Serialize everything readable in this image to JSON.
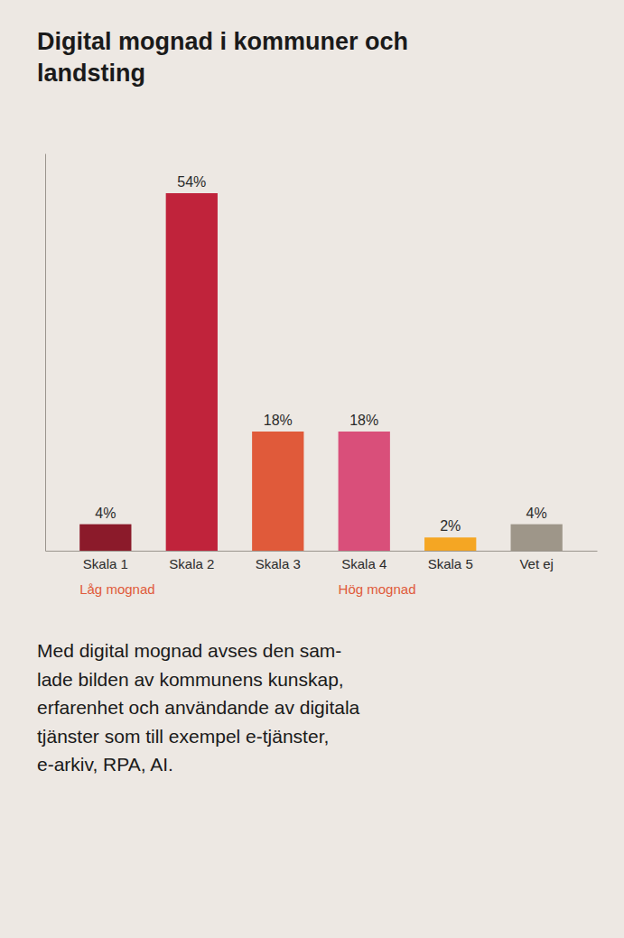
{
  "chart_data": {
    "type": "bar",
    "title": "Digital mognad i kommuner och\nlandsting",
    "categories": [
      "Skala 1",
      "Skala 2",
      "Skala 3",
      "Skala 4",
      "Skala 5",
      "Vet ej"
    ],
    "values": [
      4,
      54,
      18,
      18,
      2,
      4
    ],
    "value_labels": [
      "4%",
      "54%",
      "18%",
      "18%",
      "2%",
      "4%"
    ],
    "colors": [
      "#8B1A2A",
      "#C0233B",
      "#E05A3A",
      "#D94F7A",
      "#F5A623",
      "#9E9689"
    ],
    "ylim": [
      0,
      60
    ],
    "grid": false,
    "data_labels": true,
    "tick_labels": "x",
    "annotations": [
      "Låg mognad",
      "Hög mognad",
      "Med digital mognad avses den sam-\nlade bilden av kommunens kunskap,\nerfarenhet och användande av digitala\ntjänster som till exempel e-tjänster,\ne-arkiv, RPA, AI."
    ]
  }
}
